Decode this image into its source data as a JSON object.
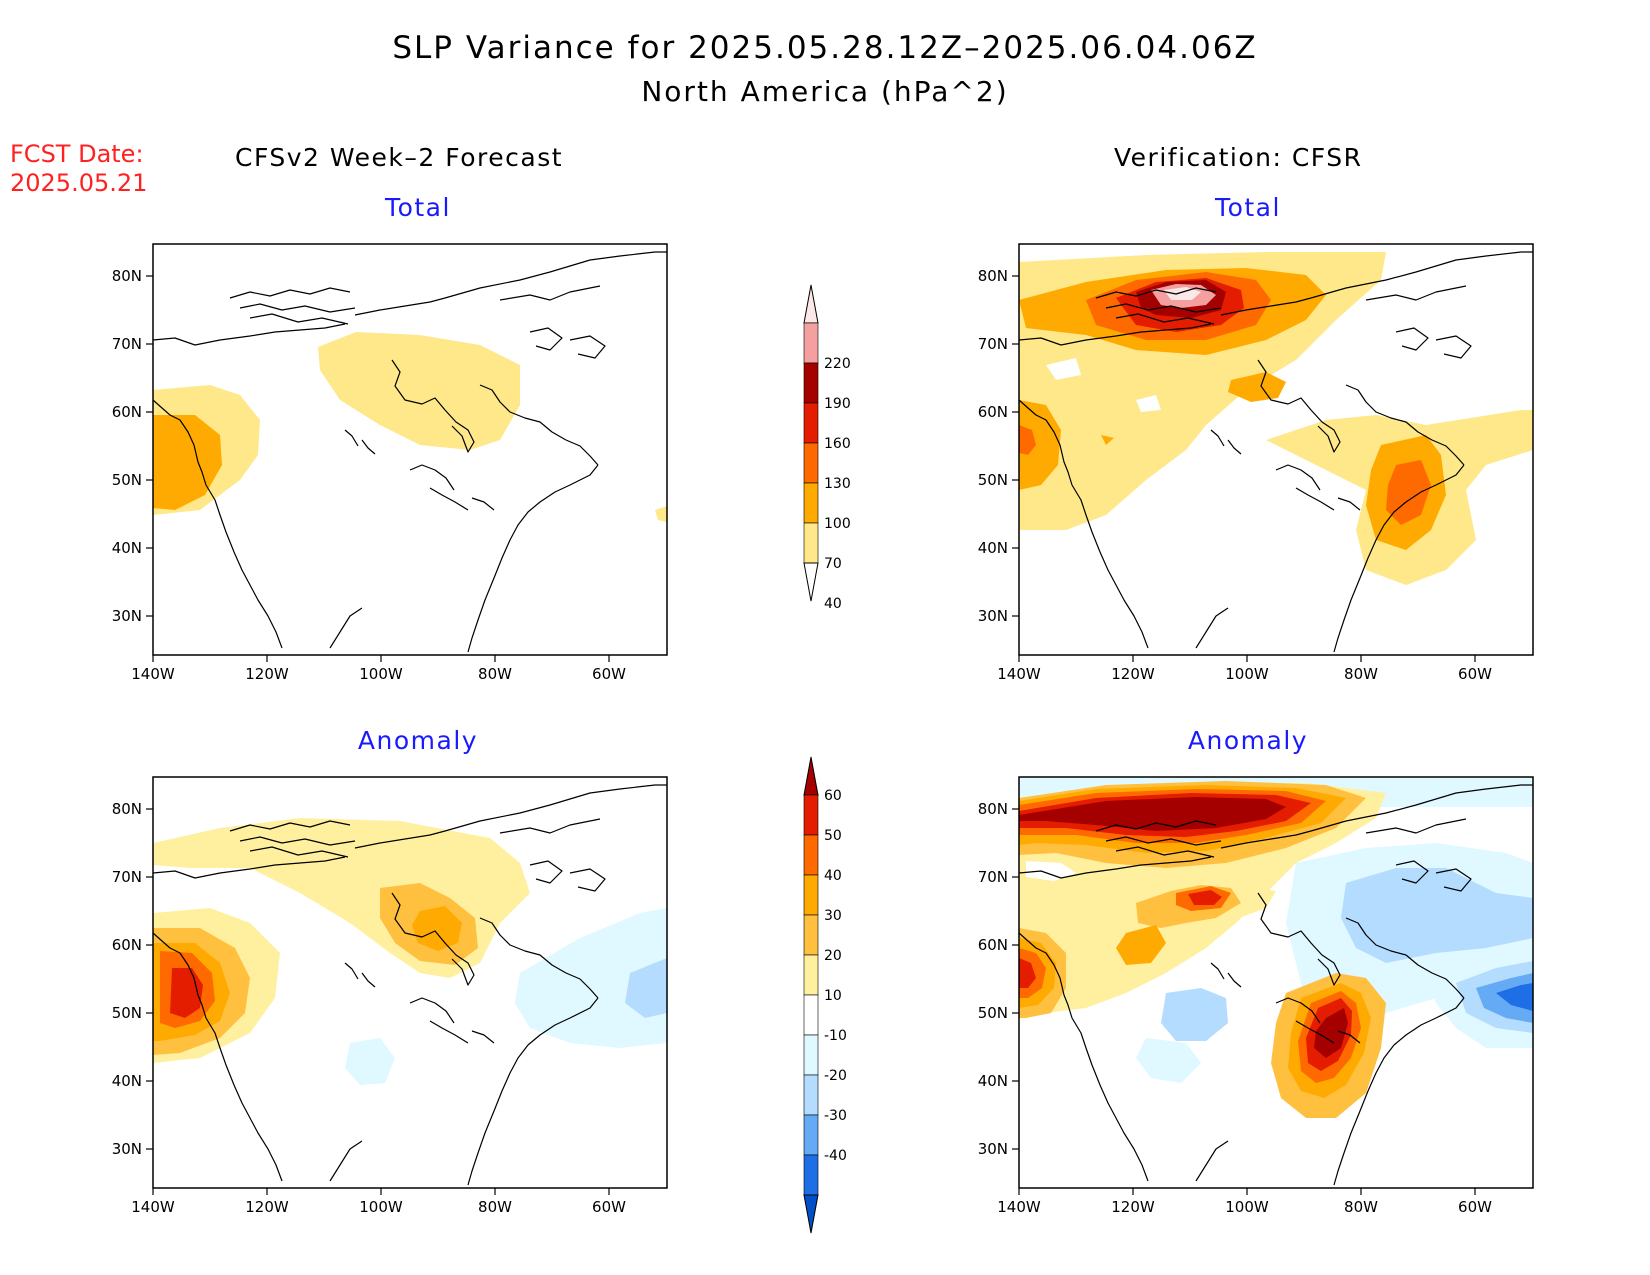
{
  "header": {
    "title": "SLP Variance for 2025.05.28.12Z–2025.06.04.06Z",
    "subtitle": "North America (hPa^2)",
    "fcst_label": "FCST Date:",
    "fcst_date": "2025.05.21",
    "left_column": "CFSv2 Week–2 Forecast",
    "right_column": "Verification: CFSR"
  },
  "panels": {
    "fc_total": {
      "title": "Total"
    },
    "fc_anom": {
      "title": "Anomaly"
    },
    "vf_total": {
      "title": "Total"
    },
    "vf_anom": {
      "title": "Anomaly"
    }
  },
  "axes": {
    "lat_ticks": [
      "80N",
      "70N",
      "60N",
      "50N",
      "40N",
      "30N"
    ],
    "lon_ticks": [
      "140W",
      "120W",
      "100W",
      "80W",
      "60W"
    ]
  },
  "colorbars": {
    "total": {
      "labels": [
        "40",
        "70",
        "100",
        "130",
        "160",
        "190",
        "220"
      ],
      "colors": [
        "#ffffff",
        "#ffe88a",
        "#ffaa00",
        "#ff6a00",
        "#e41c00",
        "#a50000",
        "#f4a0a0",
        "#fde8e8"
      ]
    },
    "anomaly": {
      "labels": [
        "60",
        "50",
        "40",
        "30",
        "20",
        "10",
        "-10",
        "-20",
        "-30",
        "-40"
      ],
      "colors": [
        "#a50000",
        "#e41c00",
        "#ff6a00",
        "#ffaa00",
        "#ffc040",
        "#fff0a0",
        "#ffffff",
        "#e0f8ff",
        "#b4dcff",
        "#64aaf5",
        "#1e6ee6",
        "#0050c8"
      ]
    }
  },
  "chart_data": {
    "type": "heatmap",
    "title": "SLP Variance for 2025.05.28.12Z–2025.06.04.06Z",
    "units": "hPa^2",
    "x_range": [
      -140,
      -50
    ],
    "y_range": [
      25,
      85
    ],
    "total_levels": [
      40,
      70,
      100,
      130,
      160,
      190,
      220
    ],
    "anomaly_levels": [
      -40,
      -30,
      -20,
      -10,
      10,
      20,
      30,
      40,
      50,
      60
    ]
  }
}
